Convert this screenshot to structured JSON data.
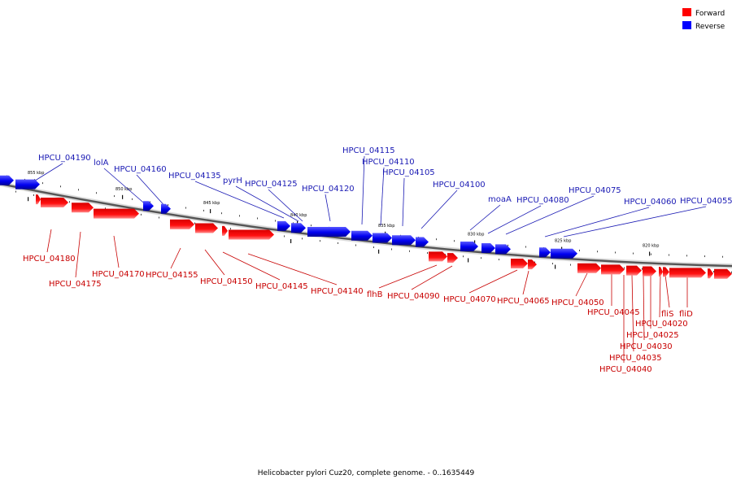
{
  "legend": {
    "forward_label": "Forward",
    "reverse_label": "Reverse",
    "forward_color": "#ff0000",
    "reverse_color": "#0000ff"
  },
  "caption": "Helicobacter pylori Cuz20, complete genome. - 0..1635449",
  "ticks": [
    "855 kbp",
    "850 kbp",
    "845 kbp",
    "840 kbp",
    "835 kbp",
    "830 kbp",
    "825 kbp",
    "820 kbp"
  ],
  "reverse_genes": [
    "HPCU_04190",
    "lolA",
    "HPCU_04160",
    "HPCU_04135",
    "pyrH",
    "HPCU_04125",
    "HPCU_04120",
    "HPCU_04115",
    "HPCU_04110",
    "HPCU_04105",
    "HPCU_04100",
    "moaA",
    "HPCU_04080",
    "HPCU_04075",
    "HPCU_04060",
    "HPCU_04055"
  ],
  "forward_genes": [
    "HPCU_04180",
    "HPCU_04175",
    "HPCU_04170",
    "HPCU_04155",
    "HPCU_04150",
    "HPCU_04145",
    "HPCU_04140",
    "flhB",
    "HPCU_04090",
    "HPCU_04070",
    "HPCU_04065",
    "HPCU_04050",
    "HPCU_04045",
    "HPCU_04040",
    "HPCU_04035",
    "HPCU_04030",
    "HPCU_04025",
    "HPCU_04020",
    "fliS",
    "fliD"
  ]
}
